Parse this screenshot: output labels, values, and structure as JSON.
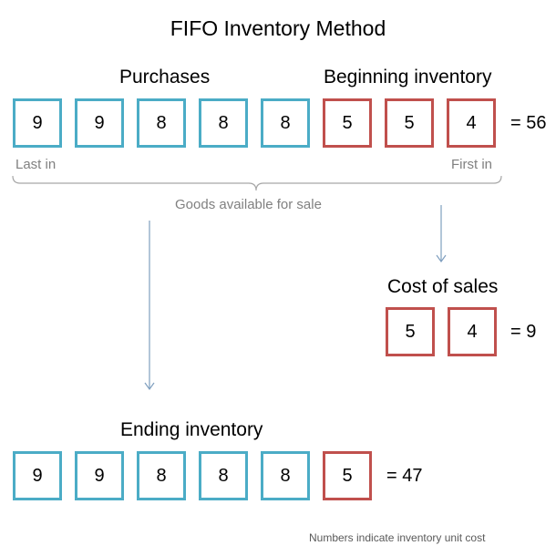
{
  "title": "FIFO Inventory Method",
  "goods": {
    "purchases_label": "Purchases",
    "beginning_label": "Beginning inventory",
    "units": [
      {
        "value": "9",
        "kind": "purchase"
      },
      {
        "value": "9",
        "kind": "purchase"
      },
      {
        "value": "8",
        "kind": "purchase"
      },
      {
        "value": "8",
        "kind": "purchase"
      },
      {
        "value": "8",
        "kind": "purchase"
      },
      {
        "value": "5",
        "kind": "beginning"
      },
      {
        "value": "5",
        "kind": "beginning"
      },
      {
        "value": "4",
        "kind": "beginning"
      }
    ],
    "total": "= 56",
    "last_in": "Last in",
    "first_in": "First in",
    "brace_label": "Goods available for sale"
  },
  "cost_of_sales": {
    "label": "Cost of sales",
    "units": [
      {
        "value": "5",
        "kind": "beginning"
      },
      {
        "value": "4",
        "kind": "beginning"
      }
    ],
    "total": "= 9"
  },
  "ending_inventory": {
    "label": "Ending inventory",
    "units": [
      {
        "value": "9",
        "kind": "purchase"
      },
      {
        "value": "9",
        "kind": "purchase"
      },
      {
        "value": "8",
        "kind": "purchase"
      },
      {
        "value": "8",
        "kind": "purchase"
      },
      {
        "value": "8",
        "kind": "purchase"
      },
      {
        "value": "5",
        "kind": "beginning"
      }
    ],
    "total": "= 47"
  },
  "footnote": "Numbers indicate inventory unit cost",
  "colors": {
    "purchase": "#4bacc6",
    "beginning": "#c0504d",
    "connector": "#7f9fbf",
    "brace": "#a6a6a6"
  }
}
